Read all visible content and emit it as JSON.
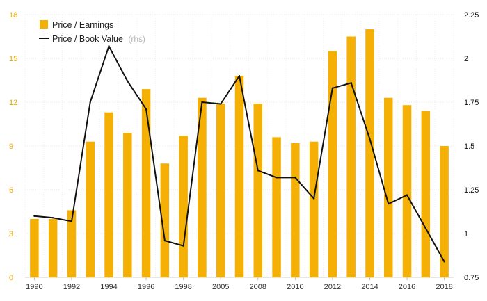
{
  "chart_data": {
    "type": "bar",
    "categories": [
      "1990",
      "1991",
      "1992",
      "1993",
      "1994",
      "1995",
      "1996",
      "1997",
      "1998",
      "1999",
      "2005",
      "2007",
      "2008",
      "2009",
      "2010",
      "2011",
      "2012",
      "2013",
      "2014",
      "2015",
      "2016",
      "2017",
      "2018"
    ],
    "x_tick_labels": [
      "1990",
      "",
      "1992",
      "",
      "1994",
      "",
      "1996",
      "",
      "1998",
      "",
      "2005",
      "",
      "2008",
      "",
      "2010",
      "",
      "2012",
      "",
      "2014",
      "",
      "2016",
      "",
      "2018"
    ],
    "series": [
      {
        "name": "Price / Earnings",
        "type": "bar",
        "axis": "left",
        "color": "#F5B005",
        "values": [
          4.0,
          4.0,
          4.6,
          9.3,
          11.3,
          9.9,
          12.9,
          7.8,
          9.7,
          12.3,
          11.9,
          13.8,
          11.9,
          9.6,
          9.2,
          9.3,
          15.5,
          16.5,
          17.0,
          12.3,
          11.8,
          11.4,
          9.0
        ]
      },
      {
        "name": "Price / Book Value",
        "name_suffix": "(rhs)",
        "type": "line",
        "axis": "right",
        "color": "#111111",
        "values": [
          1.1,
          1.09,
          1.07,
          1.75,
          2.07,
          1.87,
          1.71,
          0.96,
          0.93,
          1.75,
          1.74,
          1.9,
          1.36,
          1.32,
          1.32,
          1.2,
          1.83,
          1.86,
          1.54,
          1.17,
          1.22,
          1.03,
          0.84
        ]
      }
    ],
    "y_left": {
      "ylim": [
        0,
        18
      ],
      "ticks": [
        "0",
        "3",
        "6",
        "9",
        "12",
        "15",
        "18"
      ],
      "color": "#E8A800"
    },
    "y_right": {
      "ylim": [
        0.75,
        2.25
      ],
      "ticks": [
        "0.75",
        "1",
        "1.25",
        "1.5",
        "1.75",
        "2",
        "2.25"
      ]
    },
    "legend": {
      "placement": "top-left",
      "items": [
        {
          "label": "Price / Earnings",
          "marker": "square"
        },
        {
          "label": "Price / Book Value",
          "suffix": "(rhs)",
          "marker": "line"
        }
      ]
    },
    "grid": true
  }
}
